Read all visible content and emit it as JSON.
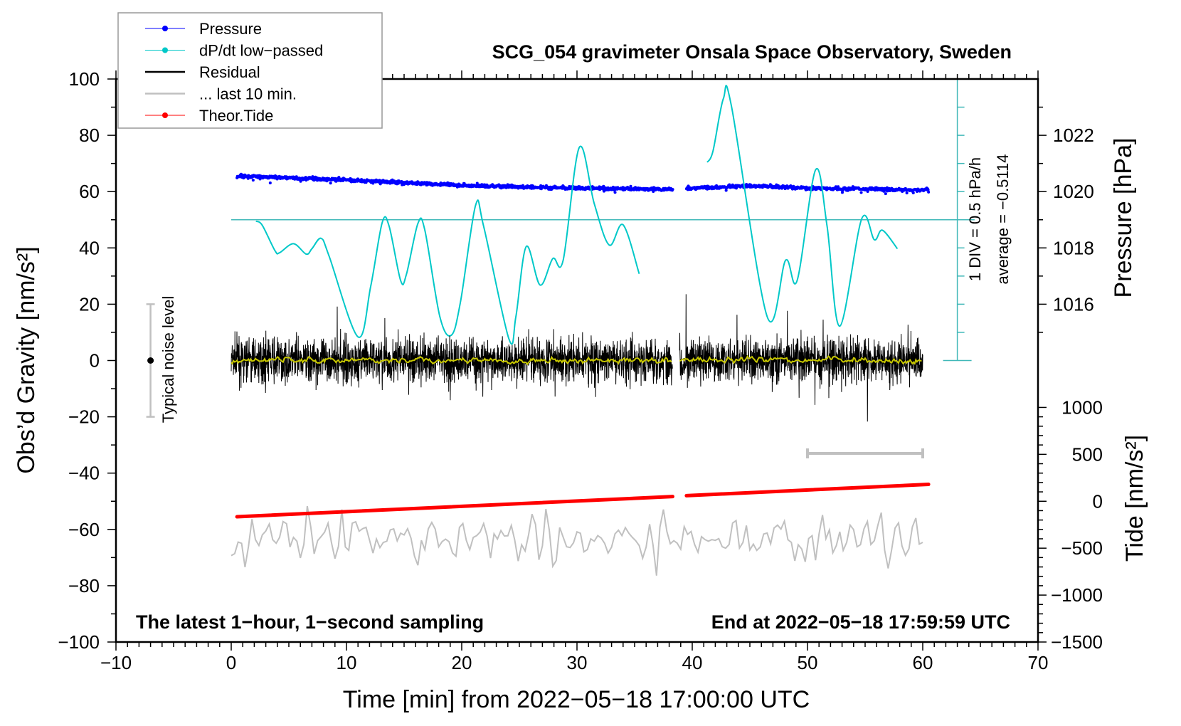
{
  "chart_data": {
    "type": "line",
    "title": "SCG_054 gravimeter Onsala Space Observatory, Sweden",
    "xlabel": "Time [min] from 2022−05−18 17:00:00 UTC",
    "ylabel": "Obs’d Gravity [nm/s²]",
    "y2label": "Pressure [hPa]",
    "y3label": "Tide [nm/s²]",
    "xlim": [
      -10,
      70
    ],
    "ylim": [
      -100,
      100
    ],
    "xticks": [
      -10,
      0,
      10,
      20,
      30,
      40,
      50,
      60,
      70
    ],
    "yticks": [
      100,
      80,
      60,
      40,
      20,
      0,
      -20,
      -40,
      -60,
      -80,
      -100
    ],
    "pressure_ticks": [
      1022,
      1020,
      1018,
      1016
    ],
    "tide_ticks": [
      1000,
      500,
      0,
      -500,
      -1000,
      -1500
    ],
    "annotations": {
      "bottom_left": "The latest 1−hour, 1−second sampling",
      "bottom_right": "End at 2022−05−18 17:59:59 UTC",
      "div_label": "1 DIV = 0.5 hPa/h",
      "average_label": "average = −0.5114",
      "noise_label": "Typical noise level",
      "noise_range": [
        -20,
        20
      ]
    },
    "legend": {
      "placement": "top-left",
      "entries": [
        {
          "label": "Pressure",
          "color": "#0000ff"
        },
        {
          "label": "dP/dt low−passed",
          "color": "#00c8c8"
        },
        {
          "label": "Residual",
          "color": "#000000"
        },
        {
          "label": "... last 10 min.",
          "color": "#c0c0c0"
        },
        {
          "label": "Theor.Tide",
          "color": "#ff0000"
        }
      ]
    },
    "series": [
      {
        "name": "Pressure",
        "unit": "hPa",
        "color": "#0000ff",
        "segments": [
          [
            [
              0.5,
              1020.55
            ],
            [
              10,
              1020.42
            ],
            [
              20,
              1020.22
            ],
            [
              30,
              1020.12
            ],
            [
              38.3,
              1020.08
            ]
          ],
          [
            [
              39.5,
              1020.12
            ],
            [
              45,
              1020.2
            ],
            [
              50,
              1020.12
            ],
            [
              60.5,
              1020.06
            ]
          ]
        ],
        "scatter": 0.06
      },
      {
        "name": "dP/dt low-passed",
        "color": "#00c8c8",
        "zero_line": 50,
        "axis_x": 63,
        "segments": [
          [
            [
              2.15,
              49.5
            ],
            [
              2.7,
              48
            ],
            [
              3.8,
              39
            ],
            [
              4.2,
              38.3
            ],
            [
              5.4,
              41.5
            ],
            [
              6.5,
              37.8
            ],
            [
              7,
              39.7
            ],
            [
              7.8,
              43.4
            ],
            [
              8.5,
              37
            ],
            [
              11,
              8.4
            ],
            [
              12.1,
              26.3
            ],
            [
              13.1,
              49
            ],
            [
              13.7,
              47.7
            ],
            [
              14.7,
              28.4
            ],
            [
              15.2,
              30.6
            ],
            [
              16.2,
              48.7
            ],
            [
              16.8,
              46.3
            ],
            [
              18.1,
              15.6
            ],
            [
              19.1,
              9
            ],
            [
              19.9,
              21
            ],
            [
              21.2,
              55.1
            ],
            [
              21.9,
              47.7
            ],
            [
              24.1,
              7.6
            ],
            [
              24.7,
              15.6
            ],
            [
              25.6,
              40.5
            ],
            [
              26.8,
              26.8
            ],
            [
              27.9,
              36.2
            ],
            [
              28.8,
              35.6
            ],
            [
              30.2,
              75.7
            ],
            [
              31.5,
              55.7
            ],
            [
              32.8,
              41
            ],
            [
              34,
              48.2
            ],
            [
              35.4,
              30.8
            ]
          ],
          [
            [
              41.3,
              70.4
            ],
            [
              41.8,
              74.4
            ],
            [
              42.7,
              93
            ],
            [
              43.4,
              90.4
            ],
            [
              46.5,
              15.6
            ],
            [
              48.1,
              35.6
            ],
            [
              49.1,
              28.4
            ],
            [
              50.7,
              67.7
            ],
            [
              51.7,
              47.7
            ],
            [
              52.8,
              12.2
            ],
            [
              54.7,
              50.3
            ],
            [
              55.8,
              42.9
            ],
            [
              56.5,
              46.3
            ],
            [
              57.8,
              39.7
            ]
          ]
        ]
      },
      {
        "name": "Residual",
        "color": "#000000",
        "segments": [
          [
            0,
            38.3
          ],
          [
            38.9,
            60
          ]
        ],
        "amplitude": 7,
        "seed": 7
      },
      {
        "name": "Residual smoothed",
        "color": "#c8c800",
        "segments": [
          [
            0,
            38.3
          ],
          [
            38.9,
            60
          ]
        ],
        "amplitude": 1
      },
      {
        "name": "... last 10 min.",
        "color": "#c0c0c0",
        "x_range": [
          0,
          60
        ],
        "offset": -63,
        "amplitude": 7,
        "seed": 3,
        "scale_bar": [
          50,
          60,
          -33
        ]
      },
      {
        "name": "Theor.Tide",
        "unit": "nm/s²",
        "color": "#ff0000",
        "segments": [
          [
            [
              0.5,
              -165
            ],
            [
              38.3,
              50
            ]
          ],
          [
            [
              39.5,
              60
            ],
            [
              60.5,
              180
            ]
          ]
        ]
      }
    ]
  }
}
